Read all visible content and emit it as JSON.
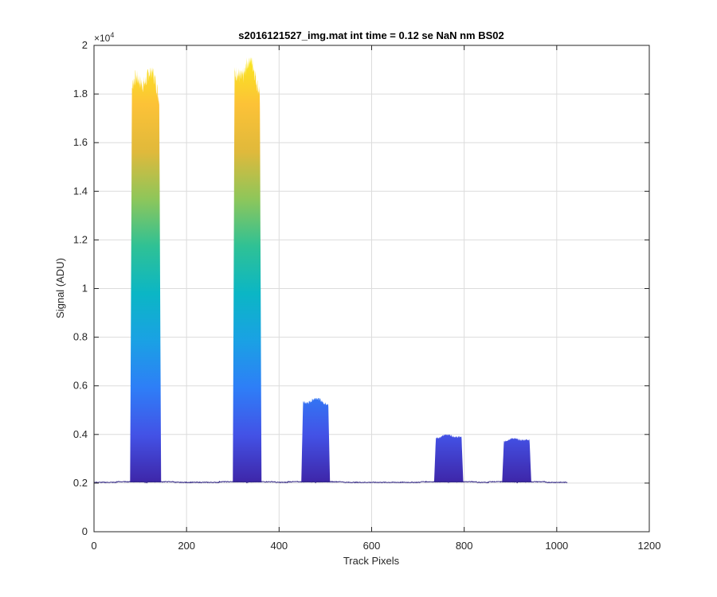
{
  "chart_data": {
    "type": "area",
    "title": "s2016121527_img.mat int time = 0.12 se  NaN nm BS02",
    "xlabel": "Track Pixels",
    "ylabel": "Signal (ADU)",
    "xlim": [
      0,
      1200
    ],
    "ylim": [
      0,
      20000
    ],
    "xticks": [
      0,
      200,
      400,
      600,
      800,
      1000,
      1200
    ],
    "xtick_labels": [
      "0",
      "200",
      "400",
      "600",
      "800",
      "1000",
      "1200"
    ],
    "yticks": [
      0,
      2000,
      4000,
      6000,
      8000,
      10000,
      12000,
      14000,
      16000,
      18000,
      20000
    ],
    "ytick_labels": [
      "0",
      "0.2",
      "0.4",
      "0.6",
      "0.8",
      "1",
      "1.2",
      "1.4",
      "1.6",
      "1.8",
      "2"
    ],
    "y_multiplier_base": "×10",
    "y_multiplier_exp": "4",
    "grid": true,
    "baseline": 2030,
    "x_extent": [
      0,
      1023
    ],
    "peaks": [
      {
        "x_start": 78,
        "x_end": 145,
        "max_signal": 19100
      },
      {
        "x_start": 300,
        "x_end": 362,
        "max_signal": 19500
      },
      {
        "x_start": 448,
        "x_end": 510,
        "max_signal": 5500
      },
      {
        "x_start": 735,
        "x_end": 798,
        "max_signal": 4000
      },
      {
        "x_start": 882,
        "x_end": 945,
        "max_signal": 3850
      }
    ],
    "colors": {
      "colormap": [
        "#3e26a8",
        "#4352e6",
        "#2e7ef7",
        "#1aa1e4",
        "#0bb6c5",
        "#2fc195",
        "#8ec65a",
        "#e0b93b",
        "#fcc237",
        "#f9e81f"
      ],
      "baseline_line": "#352a87",
      "grid": "#dcdcdc",
      "axis": "#262626"
    }
  }
}
